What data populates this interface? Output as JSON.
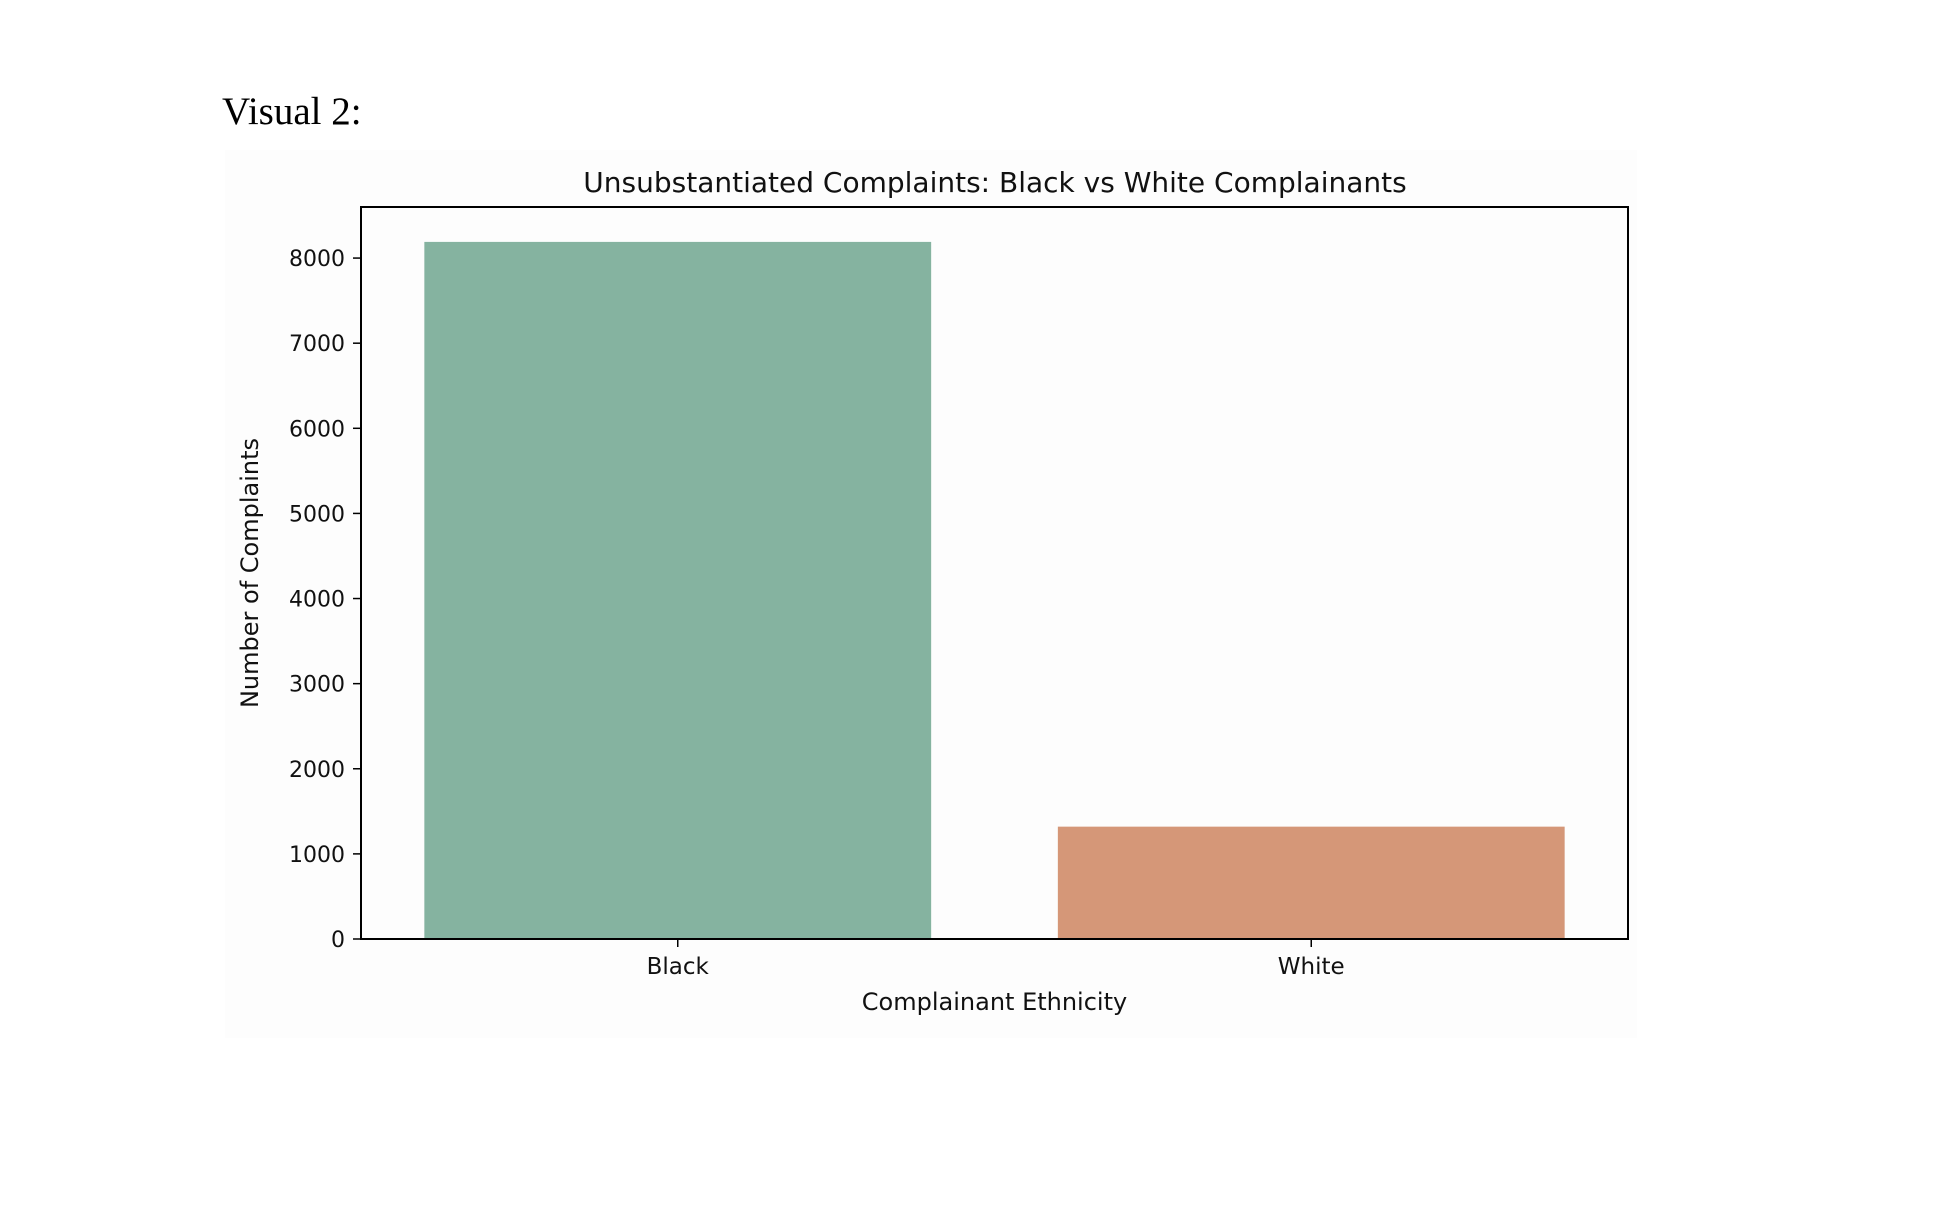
{
  "document": {
    "heading": "Visual 2:"
  },
  "chart_data": {
    "type": "bar",
    "title": "Unsubstantiated Complaints: Black vs White Complainants",
    "xlabel": "Complainant Ethnicity",
    "ylabel": "Number of Complaints",
    "categories": [
      "Black",
      "White"
    ],
    "values": [
      8190,
      1320
    ],
    "colors": [
      "#85b3a0",
      "#d59778"
    ],
    "ylim": [
      0,
      8600
    ],
    "yticks": [
      0,
      1000,
      2000,
      3000,
      4000,
      5000,
      6000,
      7000,
      8000
    ],
    "grid": false,
    "legend": "none"
  }
}
